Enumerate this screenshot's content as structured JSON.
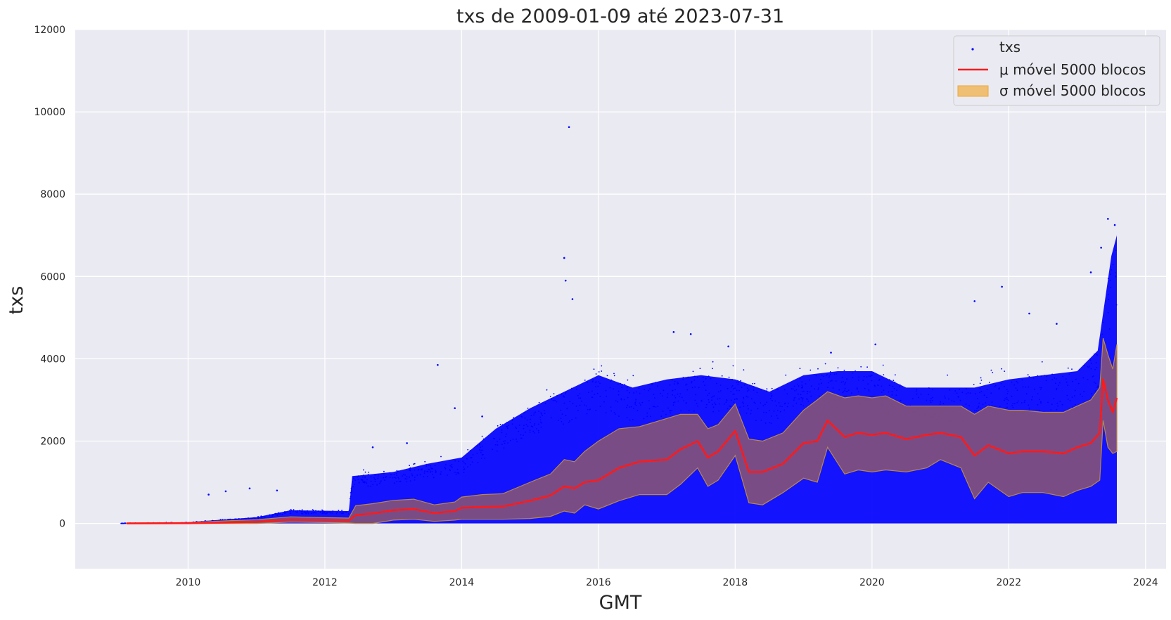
{
  "chart_data": {
    "type": "scatter",
    "title": "txs de 2009-01-09 até 2023-07-31",
    "xlabel": "GMT",
    "ylabel": "txs",
    "xlim": [
      2008.35,
      2024.3
    ],
    "ylim": [
      -1100,
      12000
    ],
    "x_ticks": [
      2010,
      2012,
      2014,
      2016,
      2018,
      2020,
      2022,
      2024
    ],
    "y_ticks": [
      0,
      2000,
      4000,
      6000,
      8000,
      10000,
      12000
    ],
    "grid": true,
    "legend_position": "top-right",
    "colors": {
      "background": "#eaeaf2",
      "grid": "#ffffff",
      "scatter": "#0000ff",
      "mean": "#ff1a1a",
      "band": "#f0a830",
      "band_overlap": "#7f4f80"
    },
    "series": [
      {
        "name": "txs",
        "kind": "scatter-envelope",
        "x": [
          2009.02,
          2010.0,
          2011.0,
          2011.5,
          2012.35,
          2012.4,
          2013.0,
          2013.5,
          2014.0,
          2014.5,
          2015.0,
          2015.5,
          2016.0,
          2016.5,
          2017.0,
          2017.5,
          2018.0,
          2018.5,
          2019.0,
          2019.5,
          2020.0,
          2020.5,
          2021.0,
          2021.5,
          2022.0,
          2022.5,
          2023.0,
          2023.3,
          2023.5,
          2023.58
        ],
        "upper": [
          10,
          30,
          150,
          320,
          300,
          1150,
          1250,
          1450,
          1600,
          2300,
          2800,
          3200,
          3600,
          3300,
          3500,
          3600,
          3500,
          3200,
          3600,
          3700,
          3700,
          3300,
          3300,
          3300,
          3500,
          3600,
          3700,
          4200,
          6500,
          7000
        ],
        "lower": [
          0,
          0,
          0,
          0,
          0,
          0,
          0,
          0,
          0,
          0,
          0,
          0,
          0,
          0,
          0,
          0,
          0,
          0,
          0,
          0,
          0,
          0,
          0,
          0,
          0,
          0,
          0,
          0,
          0,
          0
        ],
        "outliers": [
          [
            2010.3,
            700
          ],
          [
            2010.55,
            780
          ],
          [
            2010.9,
            850
          ],
          [
            2011.3,
            800
          ],
          [
            2012.7,
            1850
          ],
          [
            2013.2,
            1950
          ],
          [
            2013.65,
            3850
          ],
          [
            2013.9,
            2800
          ],
          [
            2014.3,
            2600
          ],
          [
            2015.5,
            6450
          ],
          [
            2015.52,
            5900
          ],
          [
            2015.57,
            9630
          ],
          [
            2015.62,
            5450
          ],
          [
            2017.1,
            4650
          ],
          [
            2017.35,
            4600
          ],
          [
            2017.9,
            4300
          ],
          [
            2019.4,
            4150
          ],
          [
            2020.05,
            4350
          ],
          [
            2021.5,
            5400
          ],
          [
            2021.9,
            5750
          ],
          [
            2022.3,
            5100
          ],
          [
            2022.7,
            4850
          ],
          [
            2023.2,
            6100
          ],
          [
            2023.35,
            6700
          ],
          [
            2023.45,
            7400
          ],
          [
            2023.55,
            7250
          ]
        ]
      },
      {
        "name": "μ móvel 5000 blocos",
        "kind": "line",
        "x": [
          2009.1,
          2010.0,
          2010.5,
          2011.0,
          2011.5,
          2012.0,
          2012.35,
          2012.45,
          2012.7,
          2013.0,
          2013.3,
          2013.6,
          2013.9,
          2014.0,
          2014.3,
          2014.6,
          2015.0,
          2015.3,
          2015.5,
          2015.65,
          2015.8,
          2016.0,
          2016.3,
          2016.6,
          2017.0,
          2017.2,
          2017.45,
          2017.6,
          2017.75,
          2018.0,
          2018.2,
          2018.4,
          2018.7,
          2019.0,
          2019.2,
          2019.35,
          2019.6,
          2019.8,
          2020.0,
          2020.2,
          2020.5,
          2020.8,
          2021.0,
          2021.3,
          2021.5,
          2021.7,
          2022.0,
          2022.2,
          2022.5,
          2022.8,
          2023.0,
          2023.2,
          2023.33,
          2023.38,
          2023.45,
          2023.52,
          2023.58
        ],
        "values": [
          0,
          5,
          20,
          40,
          90,
          80,
          70,
          200,
          240,
          320,
          350,
          250,
          300,
          380,
          400,
          410,
          550,
          680,
          900,
          850,
          1000,
          1050,
          1350,
          1500,
          1550,
          1800,
          2000,
          1600,
          1750,
          2250,
          1250,
          1250,
          1450,
          1950,
          2000,
          2500,
          2100,
          2200,
          2150,
          2200,
          2050,
          2150,
          2200,
          2100,
          1650,
          1900,
          1700,
          1750,
          1750,
          1700,
          1850,
          1950,
          2200,
          3500,
          3000,
          2700,
          3050
        ]
      },
      {
        "name": "σ móvel 5000 blocos",
        "kind": "band",
        "x": [
          2009.1,
          2010.0,
          2010.5,
          2011.0,
          2011.5,
          2012.0,
          2012.35,
          2012.45,
          2012.7,
          2013.0,
          2013.3,
          2013.6,
          2013.9,
          2014.0,
          2014.3,
          2014.6,
          2015.0,
          2015.3,
          2015.5,
          2015.65,
          2015.8,
          2016.0,
          2016.3,
          2016.6,
          2017.0,
          2017.2,
          2017.45,
          2017.6,
          2017.75,
          2018.0,
          2018.2,
          2018.4,
          2018.7,
          2019.0,
          2019.2,
          2019.35,
          2019.6,
          2019.8,
          2020.0,
          2020.2,
          2020.5,
          2020.8,
          2021.0,
          2021.3,
          2021.5,
          2021.7,
          2022.0,
          2022.2,
          2022.5,
          2022.8,
          2023.0,
          2023.2,
          2023.33,
          2023.38,
          2023.45,
          2023.52,
          2023.58
        ],
        "upper": [
          10,
          20,
          60,
          90,
          160,
          140,
          130,
          430,
          480,
          560,
          590,
          450,
          520,
          640,
          700,
          720,
          1000,
          1200,
          1550,
          1500,
          1750,
          2000,
          2300,
          2350,
          2550,
          2650,
          2650,
          2300,
          2400,
          2900,
          2050,
          2000,
          2200,
          2750,
          3000,
          3200,
          3050,
          3100,
          3050,
          3100,
          2850,
          2850,
          2850,
          2850,
          2650,
          2850,
          2750,
          2750,
          2700,
          2700,
          2850,
          3000,
          3300,
          4500,
          4100,
          3750,
          4350
        ],
        "lower": [
          0,
          0,
          0,
          0,
          30,
          20,
          10,
          0,
          0,
          80,
          100,
          50,
          80,
          100,
          100,
          100,
          120,
          170,
          300,
          250,
          450,
          350,
          550,
          700,
          700,
          950,
          1350,
          900,
          1050,
          1650,
          500,
          450,
          750,
          1100,
          1000,
          1850,
          1200,
          1300,
          1250,
          1300,
          1250,
          1350,
          1550,
          1350,
          600,
          1000,
          650,
          750,
          750,
          650,
          800,
          900,
          1050,
          2500,
          1850,
          1700,
          1750
        ]
      }
    ]
  }
}
